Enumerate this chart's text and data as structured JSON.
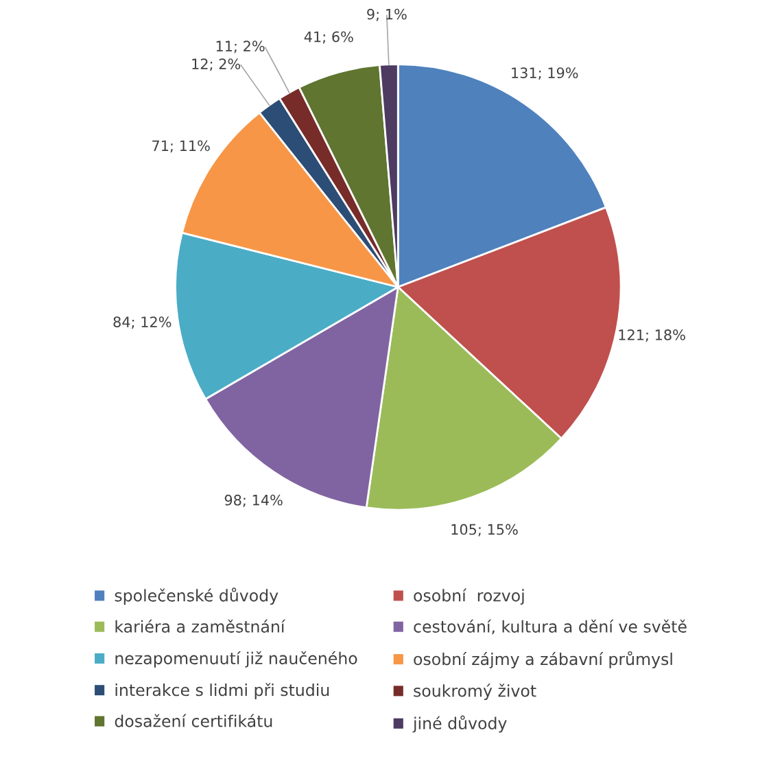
{
  "chart_data": {
    "type": "pie",
    "categories": [
      "společenské důvody",
      "osobní  rozvoj",
      "kariéra a zaměstnání",
      "cestování, kultura a dění ve světě",
      "nezapomenuutí již naučeného",
      "osobní zájmy a zábavní průmysl",
      "interakce s lidmi při studiu",
      "soukromý život",
      "dosažení certifikátu",
      "jiné důvody"
    ],
    "values": [
      131,
      121,
      105,
      98,
      84,
      71,
      12,
      11,
      41,
      9
    ],
    "value_labels": [
      "131; 19%",
      "121; 18%",
      "105; 15%",
      "98; 14%",
      "84; 12%",
      "71; 11%",
      "12; 2%",
      "11; 2%",
      "41; 6%",
      "9; 1%"
    ],
    "colors": [
      "#4f81bd",
      "#c0504d",
      "#9bbb59",
      "#8064a2",
      "#4bacc6",
      "#f79646",
      "#2c4d75",
      "#772c2a",
      "#5f7530",
      "#4d3b62"
    ],
    "legend": "bottom"
  }
}
